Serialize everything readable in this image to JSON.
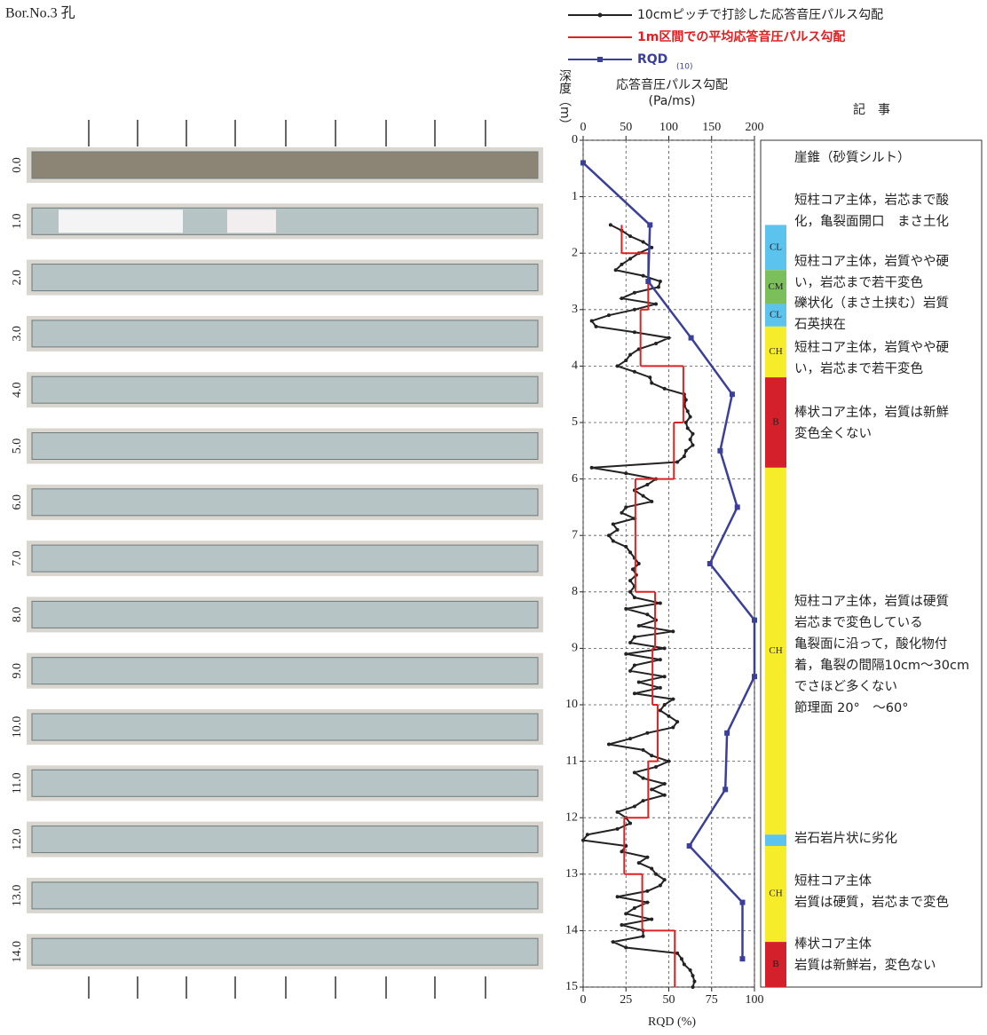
{
  "title": "Bor.No.3 孔",
  "core_photos": {
    "labels": [
      "0.0",
      "1.0",
      "2.0",
      "3.0",
      "4.0",
      "5.0",
      "6.0",
      "7.0",
      "8.0",
      "9.0",
      "10.0",
      "11.0",
      "12.0",
      "13.0",
      "14.0"
    ]
  },
  "chart_data": {
    "type": "line",
    "y_label": "深度（m）",
    "x_label": [
      "応答音圧パルス勾配",
      "(Pa/ms)"
    ],
    "x2_label": "RQD (%)",
    "ylim": [
      0,
      15
    ],
    "yticks": [
      0,
      1,
      2,
      3,
      4,
      5,
      6,
      7,
      8,
      9,
      10,
      11,
      12,
      13,
      14,
      15
    ],
    "xlim": [
      0,
      200
    ],
    "xticks": [
      0,
      50,
      100,
      150,
      200
    ],
    "x2lim": [
      0,
      100
    ],
    "x2ticks": [
      0,
      25,
      50,
      75,
      100
    ],
    "grid": true,
    "series": [
      {
        "name": "10cmピッチで打診した応答音圧パルス勾配",
        "color": "#222222",
        "depth": [
          1.5,
          1.6,
          1.7,
          1.8,
          1.9,
          2.0,
          2.1,
          2.2,
          2.3,
          2.4,
          2.5,
          2.6,
          2.7,
          2.8,
          2.9,
          3.0,
          3.1,
          3.2,
          3.3,
          3.4,
          3.5,
          3.6,
          3.7,
          3.8,
          3.9,
          4.0,
          4.1,
          4.2,
          4.3,
          4.4,
          4.5,
          4.6,
          4.7,
          4.8,
          4.9,
          5.0,
          5.1,
          5.2,
          5.3,
          5.4,
          5.5,
          5.6,
          5.7,
          5.8,
          5.9,
          6.0,
          6.1,
          6.2,
          6.3,
          6.4,
          6.5,
          6.6,
          6.7,
          6.8,
          6.9,
          7.0,
          7.1,
          7.2,
          7.3,
          7.4,
          7.5,
          7.6,
          7.7,
          7.8,
          7.9,
          8.0,
          8.1,
          8.2,
          8.3,
          8.4,
          8.5,
          8.6,
          8.7,
          8.8,
          8.9,
          9.0,
          9.1,
          9.2,
          9.3,
          9.4,
          9.5,
          9.6,
          9.7,
          9.8,
          9.9,
          10.0,
          10.1,
          10.2,
          10.3,
          10.4,
          10.5,
          10.6,
          10.7,
          10.8,
          10.9,
          11.0,
          11.1,
          11.2,
          11.3,
          11.4,
          11.5,
          11.6,
          11.7,
          11.8,
          11.9,
          12.0,
          12.1,
          12.2,
          12.3,
          12.4,
          12.5,
          12.6,
          12.7,
          12.8,
          12.9,
          13.0,
          13.1,
          13.2,
          13.3,
          13.4,
          13.5,
          13.6,
          13.7,
          13.8,
          13.9,
          14.0,
          14.1,
          14.2,
          14.3,
          14.4,
          14.5,
          14.6,
          14.7,
          14.8,
          14.9,
          15.0
        ],
        "values": [
          32,
          45,
          55,
          70,
          80,
          65,
          55,
          45,
          38,
          70,
          90,
          88,
          60,
          45,
          85,
          60,
          30,
          10,
          15,
          60,
          100,
          85,
          65,
          55,
          50,
          40,
          60,
          78,
          80,
          95,
          118,
          120,
          118,
          122,
          125,
          120,
          122,
          128,
          125,
          128,
          120,
          118,
          110,
          10,
          50,
          85,
          75,
          60,
          70,
          80,
          50,
          45,
          60,
          35,
          40,
          30,
          35,
          50,
          55,
          60,
          65,
          58,
          62,
          55,
          60,
          55,
          60,
          90,
          50,
          75,
          85,
          65,
          105,
          60,
          55,
          95,
          50,
          90,
          60,
          55,
          95,
          65,
          90,
          60,
          105,
          95,
          90,
          100,
          110,
          105,
          75,
          55,
          30,
          70,
          80,
          100,
          85,
          60,
          70,
          95,
          80,
          95,
          70,
          60,
          40,
          50,
          55,
          40,
          5,
          0,
          50,
          45,
          75,
          65,
          80,
          85,
          95,
          90,
          75,
          40,
          75,
          60,
          50,
          80,
          45,
          70,
          70,
          35,
          50,
          110,
          115,
          118,
          125,
          128,
          130,
          128
        ]
      },
      {
        "name": "1m区間での平均応答音圧パルス勾配",
        "color": "#e02020",
        "depth_edges": [
          1.5,
          2,
          3,
          4,
          5,
          6,
          7,
          8,
          9,
          10,
          11,
          12,
          13,
          14,
          15
        ],
        "values": [
          45,
          76,
          67,
          117,
          106,
          61,
          61,
          84,
          81,
          87,
          76,
          48,
          69,
          107
        ]
      },
      {
        "name": "RQD",
        "name_subscript": "(10)",
        "color": "#3a3f9a",
        "axis": "x2",
        "depth": [
          0.4,
          1.5,
          2.5,
          3.5,
          4.5,
          5.5,
          6.5,
          7.5,
          8.5,
          9.5,
          10.5,
          11.5,
          12.5,
          13.5,
          14.5
        ],
        "values": [
          0,
          39,
          38,
          63,
          87,
          80,
          90,
          74,
          100,
          100,
          84,
          83,
          62,
          93,
          93
        ]
      }
    ]
  },
  "remarks": {
    "header": "記　事",
    "items": [
      {
        "lines": [
          "崖錐（砂質シルト）"
        ]
      },
      {
        "lines": [
          "短柱コア主体，岩芯まで酸",
          "化，亀裂面開口　まさ土化"
        ]
      },
      {
        "lines": [
          "短柱コア主体，岩質やや硬",
          "い，岩芯まで若干変色"
        ]
      },
      {
        "lines": [
          "礫状化（まさ土挟む）岩質",
          "石英挟在"
        ]
      },
      {
        "lines": [
          "短柱コア主体，岩質やや硬",
          "い，岩芯まで若干変色"
        ]
      },
      {
        "lines": [
          "棒状コア主体，岩質は新鮮",
          "変色全くない"
        ]
      },
      {
        "lines": [
          "短柱コア主体，岩質は硬質",
          "岩芯まで変色している",
          "亀裂面に沿って，酸化物付",
          "着，亀裂の間隔10cm～30cm",
          "でさほど多くない",
          "節理面 20°　～60°"
        ]
      },
      {
        "lines": [
          "岩石岩片状に劣化"
        ]
      },
      {
        "lines": [
          "短柱コア主体",
          "岩質は硬質，岩芯まで変色"
        ]
      },
      {
        "lines": [
          "棒状コア主体",
          "岩質は新鮮岩，変色ない"
        ]
      }
    ],
    "rock_classes": [
      {
        "label": "CL",
        "color": "#5bc3ee",
        "top": 1.5,
        "bottom": 2.3
      },
      {
        "label": "CM",
        "color": "#7bbf5a",
        "top": 2.3,
        "bottom": 2.9
      },
      {
        "label": "CL",
        "color": "#5bc3ee",
        "top": 2.9,
        "bottom": 3.3
      },
      {
        "label": "CH",
        "color": "#f7ec2a",
        "top": 3.3,
        "bottom": 4.2
      },
      {
        "label": "B",
        "color": "#d4202a",
        "top": 4.2,
        "bottom": 5.8
      },
      {
        "label": "CH",
        "color": "#f7ec2a",
        "top": 5.8,
        "bottom": 12.3
      },
      {
        "label": null,
        "color": "#5bc3ee",
        "top": 12.3,
        "bottom": 12.5
      },
      {
        "label": "CH",
        "color": "#f7ec2a",
        "top": 12.5,
        "bottom": 14.2
      },
      {
        "label": "B",
        "color": "#d4202a",
        "top": 14.2,
        "bottom": 15
      }
    ]
  }
}
